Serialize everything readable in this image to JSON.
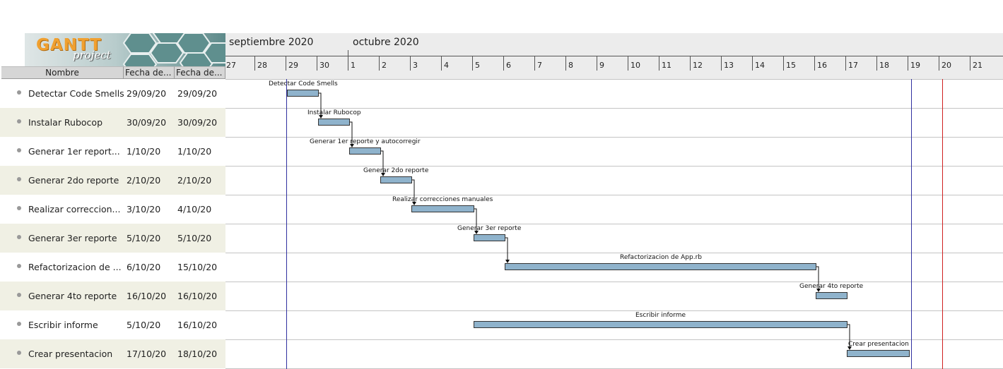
{
  "logo": {
    "main": "GANTT",
    "sub": "project"
  },
  "columns": {
    "name": "Nombre",
    "start": "Fecha de...",
    "end": "Fecha de..."
  },
  "months": [
    "septiembre 2020",
    "octubre 2020"
  ],
  "days": [
    "27",
    "28",
    "29",
    "30",
    "1",
    "2",
    "3",
    "4",
    "5",
    "6",
    "7",
    "8",
    "9",
    "10",
    "11",
    "12",
    "13",
    "14",
    "15",
    "16",
    "17",
    "18",
    "19",
    "20",
    "21"
  ],
  "tasks": [
    {
      "name": "Detectar Code Smells",
      "start": "29/09/20",
      "end": "29/09/20",
      "label": "Detectar Code Smells"
    },
    {
      "name": "Instalar Rubocop",
      "start": "30/09/20",
      "end": "30/09/20",
      "label": "Instalar Rubocop"
    },
    {
      "name": "Generar 1er report...",
      "start": "1/10/20",
      "end": "1/10/20",
      "label": "Generar 1er reporte y autocorregir"
    },
    {
      "name": "Generar 2do reporte",
      "start": "2/10/20",
      "end": "2/10/20",
      "label": "Generar 2do reporte"
    },
    {
      "name": "Realizar correccion...",
      "start": "3/10/20",
      "end": "4/10/20",
      "label": "Realizar correcciones manuales"
    },
    {
      "name": "Generar 3er reporte",
      "start": "5/10/20",
      "end": "5/10/20",
      "label": "Generar 3er reporte"
    },
    {
      "name": "Refactorizacion de ...",
      "start": "6/10/20",
      "end": "15/10/20",
      "label": "Refactorizacion de App.rb"
    },
    {
      "name": "Generar 4to reporte",
      "start": "16/10/20",
      "end": "16/10/20",
      "label": "Generar 4to reporte"
    },
    {
      "name": "Escribir informe",
      "start": "5/10/20",
      "end": "16/10/20",
      "label": "Escribir informe"
    },
    {
      "name": "Crear presentacion",
      "start": "17/10/20",
      "end": "18/10/20",
      "label": "Crear presentacion"
    }
  ],
  "colors": {
    "bar": "#8fb3cc",
    "today": "#d02020",
    "marker": "#3030a0",
    "alt_row": "#f0f0e4"
  }
}
